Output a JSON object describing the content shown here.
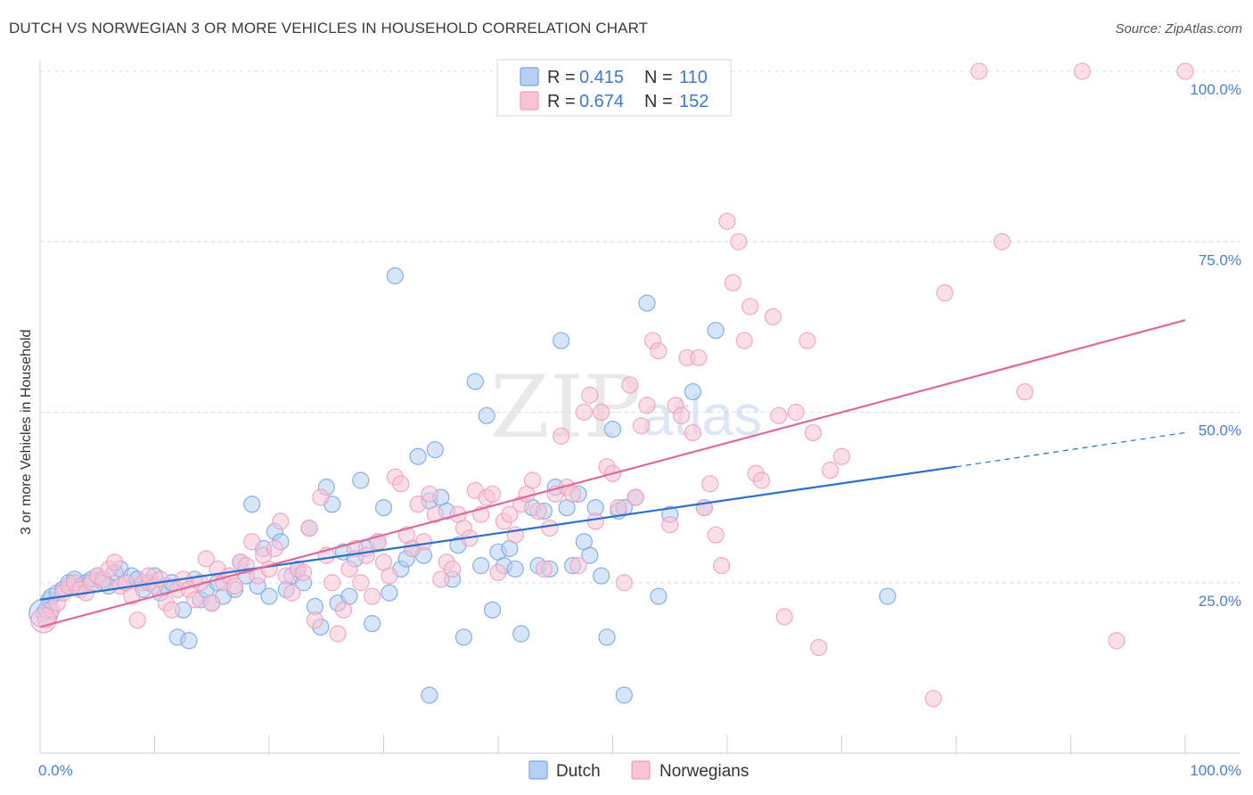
{
  "title": "DUTCH VS NORWEGIAN 3 OR MORE VEHICLES IN HOUSEHOLD CORRELATION CHART",
  "source": "Source: ZipAtlas.com",
  "watermark": {
    "main": "ZIP",
    "sub": "atlas"
  },
  "legend": {
    "r_label": "R =",
    "n_label": "N =",
    "items": [
      {
        "r": "0.415",
        "n": "110"
      },
      {
        "r": "0.674",
        "n": "152"
      }
    ]
  },
  "chart_data": {
    "type": "scatter",
    "xlabel": "",
    "ylabel": "3 or more Vehicles in Household",
    "xlim": [
      0,
      100
    ],
    "ylim": [
      0,
      100
    ],
    "x_tick_labels": {
      "min": "0.0%",
      "max": "100.0%"
    },
    "y_ticks": [
      {
        "value": 25,
        "label": "25.0%"
      },
      {
        "value": 50,
        "label": "50.0%"
      },
      {
        "value": 75,
        "label": "75.0%"
      },
      {
        "value": 100,
        "label": "100.0%"
      }
    ],
    "colors": {
      "dutch": "#7aa7e8",
      "dutch_line": "#2b6fcf",
      "norwegian": "#f0a0bc",
      "norwegian_line": "#e0689a"
    },
    "series": [
      {
        "name": "Dutch",
        "trend": {
          "x0": 0,
          "y0": 22.5,
          "x1": 80,
          "y1": 42,
          "dash_x1": 100,
          "dash_y1": 47
        },
        "points": [
          [
            0.3,
            20.5
          ],
          [
            0.5,
            21
          ],
          [
            0.8,
            22.5
          ],
          [
            1,
            23
          ],
          [
            1.5,
            23.5
          ],
          [
            2,
            24
          ],
          [
            2.5,
            25
          ],
          [
            3,
            25.5
          ],
          [
            3.5,
            24.5
          ],
          [
            4,
            25
          ],
          [
            4.5,
            25.5
          ],
          [
            5,
            26
          ],
          [
            5.5,
            25
          ],
          [
            6,
            24.5
          ],
          [
            6.5,
            26.5
          ],
          [
            7,
            27
          ],
          [
            7.5,
            25
          ],
          [
            8,
            26
          ],
          [
            8.5,
            25.5
          ],
          [
            9,
            24
          ],
          [
            9.5,
            25
          ],
          [
            10,
            26
          ],
          [
            10.5,
            23.5
          ],
          [
            11,
            24.5
          ],
          [
            11.5,
            25
          ],
          [
            12,
            17
          ],
          [
            12.5,
            21
          ],
          [
            13,
            16.5
          ],
          [
            13.5,
            25.5
          ],
          [
            14,
            22.5
          ],
          [
            14.5,
            24
          ],
          [
            15,
            22
          ],
          [
            15.5,
            25
          ],
          [
            16,
            23
          ],
          [
            17,
            24
          ],
          [
            17.5,
            28
          ],
          [
            18,
            26
          ],
          [
            18.5,
            36.5
          ],
          [
            19,
            24.5
          ],
          [
            19.5,
            30
          ],
          [
            20,
            23
          ],
          [
            20.5,
            32.5
          ],
          [
            21,
            31
          ],
          [
            21.5,
            24
          ],
          [
            22,
            26
          ],
          [
            22.5,
            27
          ],
          [
            23,
            25
          ],
          [
            23.5,
            33
          ],
          [
            24,
            21.5
          ],
          [
            24.5,
            18.5
          ],
          [
            25,
            39
          ],
          [
            25.5,
            36.5
          ],
          [
            26,
            22
          ],
          [
            26.5,
            29.5
          ],
          [
            27,
            23
          ],
          [
            27.5,
            28.5
          ],
          [
            28,
            40
          ],
          [
            28.5,
            30
          ],
          [
            29,
            19
          ],
          [
            29.5,
            31
          ],
          [
            30,
            36
          ],
          [
            30.5,
            23.5
          ],
          [
            31,
            70
          ],
          [
            31.5,
            27
          ],
          [
            32,
            28.5
          ],
          [
            32.5,
            30
          ],
          [
            33,
            43.5
          ],
          [
            33.5,
            29
          ],
          [
            34,
            37
          ],
          [
            34.5,
            44.5
          ],
          [
            35,
            37.5
          ],
          [
            35.5,
            35.5
          ],
          [
            36,
            25.5
          ],
          [
            36.5,
            30.5
          ],
          [
            37,
            17
          ],
          [
            38,
            54.5
          ],
          [
            38.5,
            27.5
          ],
          [
            39,
            49.5
          ],
          [
            39.5,
            21
          ],
          [
            40,
            29.5
          ],
          [
            40.5,
            27.5
          ],
          [
            41,
            30
          ],
          [
            41.5,
            27
          ],
          [
            42,
            17.5
          ],
          [
            43,
            36
          ],
          [
            43.5,
            27.5
          ],
          [
            44,
            35.5
          ],
          [
            44.5,
            27
          ],
          [
            45,
            39
          ],
          [
            45.5,
            60.5
          ],
          [
            46,
            36
          ],
          [
            46.5,
            27.5
          ],
          [
            47,
            38
          ],
          [
            47.5,
            31
          ],
          [
            48,
            29
          ],
          [
            48.5,
            36
          ],
          [
            49,
            26
          ],
          [
            49.5,
            17
          ],
          [
            50,
            47.5
          ],
          [
            50.5,
            35.5
          ],
          [
            51,
            36
          ],
          [
            52,
            37.5
          ],
          [
            53,
            66
          ],
          [
            54,
            23
          ],
          [
            55,
            35
          ],
          [
            57,
            53
          ],
          [
            58,
            36
          ],
          [
            59,
            62
          ],
          [
            74,
            23
          ],
          [
            34,
            8.5
          ],
          [
            51,
            8.5
          ]
        ]
      },
      {
        "name": "Norwegians",
        "trend": {
          "x0": 0,
          "y0": 18.5,
          "x1": 100,
          "y1": 63.5
        },
        "points": [
          [
            0.5,
            19.5
          ],
          [
            1,
            21
          ],
          [
            1.5,
            22
          ],
          [
            2,
            23.5
          ],
          [
            2.5,
            24.5
          ],
          [
            3,
            25
          ],
          [
            3.5,
            24
          ],
          [
            4,
            23.5
          ],
          [
            4.5,
            25
          ],
          [
            5,
            26
          ],
          [
            5.5,
            25.5
          ],
          [
            6,
            27
          ],
          [
            6.5,
            28
          ],
          [
            7,
            24.5
          ],
          [
            7.5,
            25
          ],
          [
            8,
            23
          ],
          [
            8.5,
            19.5
          ],
          [
            9,
            25
          ],
          [
            9.5,
            26
          ],
          [
            10,
            24.5
          ],
          [
            10.5,
            25.5
          ],
          [
            11,
            22
          ],
          [
            11.5,
            21
          ],
          [
            12,
            24
          ],
          [
            12.5,
            25.5
          ],
          [
            13,
            24
          ],
          [
            13.5,
            22.5
          ],
          [
            14,
            25
          ],
          [
            14.5,
            28.5
          ],
          [
            15,
            22
          ],
          [
            15.5,
            27
          ],
          [
            16,
            25
          ],
          [
            16.5,
            26
          ],
          [
            17,
            24.5
          ],
          [
            17.5,
            28
          ],
          [
            18,
            27.5
          ],
          [
            18.5,
            31
          ],
          [
            19,
            26
          ],
          [
            19.5,
            29
          ],
          [
            20,
            27
          ],
          [
            20.5,
            30
          ],
          [
            21,
            34
          ],
          [
            21.5,
            26
          ],
          [
            22,
            23.5
          ],
          [
            22.5,
            27
          ],
          [
            23,
            26.5
          ],
          [
            23.5,
            33
          ],
          [
            24,
            19.5
          ],
          [
            24.5,
            37.5
          ],
          [
            25,
            29
          ],
          [
            25.5,
            25
          ],
          [
            26,
            17.5
          ],
          [
            26.5,
            21
          ],
          [
            27,
            27
          ],
          [
            27.5,
            30
          ],
          [
            28,
            25
          ],
          [
            28.5,
            29
          ],
          [
            29,
            23
          ],
          [
            29.5,
            31
          ],
          [
            30,
            28
          ],
          [
            30.5,
            26
          ],
          [
            31,
            40.5
          ],
          [
            31.5,
            39.5
          ],
          [
            32,
            32
          ],
          [
            32.5,
            30
          ],
          [
            33,
            36.5
          ],
          [
            33.5,
            31
          ],
          [
            34,
            38
          ],
          [
            34.5,
            35
          ],
          [
            35,
            25.5
          ],
          [
            35.5,
            28
          ],
          [
            36,
            27
          ],
          [
            36.5,
            35
          ],
          [
            37,
            33
          ],
          [
            37.5,
            31.5
          ],
          [
            38,
            38.5
          ],
          [
            38.5,
            35
          ],
          [
            39,
            37.5
          ],
          [
            39.5,
            38
          ],
          [
            40,
            26.5
          ],
          [
            40.5,
            34
          ],
          [
            41,
            35
          ],
          [
            41.5,
            32
          ],
          [
            42,
            36.5
          ],
          [
            42.5,
            38
          ],
          [
            43,
            40
          ],
          [
            43.5,
            35.5
          ],
          [
            44,
            27
          ],
          [
            44.5,
            33
          ],
          [
            45,
            38
          ],
          [
            45.5,
            46.5
          ],
          [
            46,
            39
          ],
          [
            46.5,
            38
          ],
          [
            47,
            27.5
          ],
          [
            47.5,
            50
          ],
          [
            48,
            52.5
          ],
          [
            48.5,
            34
          ],
          [
            49,
            50
          ],
          [
            49.5,
            42
          ],
          [
            50,
            41
          ],
          [
            50.5,
            36
          ],
          [
            51,
            25
          ],
          [
            51.5,
            54
          ],
          [
            52,
            37.5
          ],
          [
            52.5,
            48
          ],
          [
            53,
            51
          ],
          [
            53.5,
            60.5
          ],
          [
            54,
            59
          ],
          [
            55,
            33.5
          ],
          [
            55.5,
            51
          ],
          [
            56,
            49.5
          ],
          [
            56.5,
            58
          ],
          [
            57,
            47
          ],
          [
            57.5,
            58
          ],
          [
            58,
            36
          ],
          [
            58.5,
            39.5
          ],
          [
            59,
            32
          ],
          [
            59.5,
            27.5
          ],
          [
            60,
            78
          ],
          [
            60.5,
            69
          ],
          [
            61,
            75
          ],
          [
            61.5,
            60.5
          ],
          [
            62,
            65.5
          ],
          [
            62.5,
            41
          ],
          [
            63,
            40
          ],
          [
            64,
            64
          ],
          [
            64.5,
            49.5
          ],
          [
            65,
            20
          ],
          [
            66,
            50
          ],
          [
            67,
            60.5
          ],
          [
            67.5,
            47
          ],
          [
            68,
            15.5
          ],
          [
            69,
            41.5
          ],
          [
            70,
            43.5
          ],
          [
            78,
            8
          ],
          [
            79,
            67.5
          ],
          [
            82,
            100
          ],
          [
            84,
            75
          ],
          [
            86,
            53
          ],
          [
            91,
            100
          ],
          [
            94,
            16.5
          ],
          [
            100,
            100
          ]
        ]
      }
    ]
  }
}
